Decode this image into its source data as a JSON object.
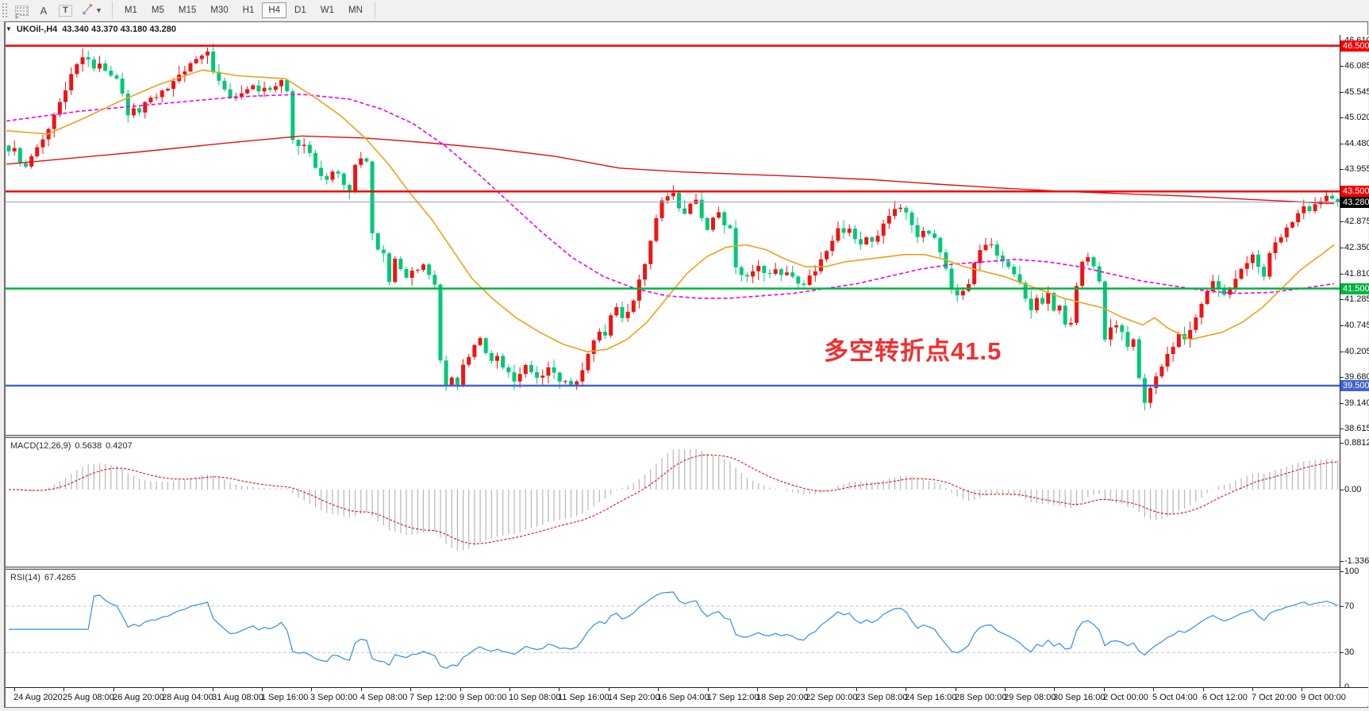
{
  "toolbar": {
    "tools": [
      {
        "name": "indicator-window-icon",
        "glyph": "F"
      },
      {
        "name": "text-label-icon",
        "glyph": "A"
      },
      {
        "name": "text-box-icon",
        "glyph": "T"
      },
      {
        "name": "cursor-styles-icon",
        "glyph": "arrows"
      }
    ],
    "timeframes": [
      "M1",
      "M5",
      "M15",
      "M30",
      "H1",
      "H4",
      "D1",
      "W1",
      "MN"
    ],
    "active_timeframe": "H4"
  },
  "chart": {
    "title_symbol": "UKOil-,H4",
    "title_ohlc": "43.340 43.370 43.180 43.280",
    "expand_triangle": "▼"
  },
  "annotation": {
    "text": "多空转折点41.5",
    "color": "#f22e2e"
  },
  "indicators": {
    "macd": {
      "name": "MACD(12,26,9)",
      "value_main": "0.5638",
      "value_signal": "0.4207",
      "axis_ticks": [
        0.8812,
        0.0,
        -1.3368
      ],
      "axis_tick_labels": [
        "0.8812",
        "0.00",
        "-1.3368"
      ]
    },
    "rsi": {
      "name": "RSI(14)",
      "value": "67.4265",
      "axis_ticks": [
        100,
        70,
        30,
        0
      ],
      "axis_tick_labels": [
        "100",
        "70",
        "30",
        "0"
      ],
      "dashed_levels": [
        70,
        30
      ]
    }
  },
  "price_axis": {
    "ticks": [
      46.61,
      46.085,
      45.545,
      45.02,
      44.48,
      43.955,
      43.43,
      42.875,
      42.35,
      41.81,
      41.285,
      40.745,
      40.205,
      39.68,
      39.14,
      38.615
    ],
    "tick_labels": [
      "46.610",
      "46.085",
      "45.545",
      "45.020",
      "44.480",
      "43.955",
      "43.430",
      "42.875",
      "42.350",
      "41.810",
      "41.285",
      "40.745",
      "40.205",
      "39.680",
      "39.140",
      "38.615"
    ],
    "tags": [
      {
        "text": "46.500",
        "price": 46.5,
        "bg": "#f40000",
        "fg": "#ffffff"
      },
      {
        "text": "43.500",
        "price": 43.5,
        "bg": "#f40000",
        "fg": "#ffffff"
      },
      {
        "text": "43.280",
        "price": 43.28,
        "bg": "#000000",
        "fg": "#ffffff"
      },
      {
        "text": "41.500",
        "price": 41.5,
        "bg": "#00b43e",
        "fg": "#ffffff"
      },
      {
        "text": "39.500",
        "price": 39.5,
        "bg": "#4163d6",
        "fg": "#ffffff"
      }
    ]
  },
  "time_axis": {
    "labels": [
      "24 Aug 2020",
      "25 Aug 08:00",
      "26 Aug 20:00",
      "28 Aug 04:00",
      "31 Aug 08:00",
      "1 Sep 16:00",
      "3 Sep 00:00",
      "4 Sep 08:00",
      "7 Sep 12:00",
      "9 Sep 00:00",
      "10 Sep 08:00",
      "11 Sep 16:00",
      "14 Sep 20:00",
      "16 Sep 04:00",
      "17 Sep 12:00",
      "18 Sep 20:00",
      "22 Sep 00:00",
      "23 Sep 08:00",
      "24 Sep 16:00",
      "28 Sep 00:00",
      "29 Sep 08:00",
      "30 Sep 16:00",
      "2 Oct 00:00",
      "5 Oct 04:00",
      "6 Oct 12:00",
      "7 Oct 20:00",
      "9 Oct 00:00"
    ]
  },
  "chart_data": {
    "type": "candlestick",
    "symbol": "UKOil-",
    "timeframe": "H4",
    "count": 235,
    "colors": {
      "up": "#ee1414",
      "down": "#00c878",
      "macd_hist": "#b6b6b6",
      "macd_signal": "#e01010",
      "rsi_line": "#2f8fe8",
      "level_dash": "#c4c4c4",
      "current_price_line": "#9aa0a4"
    },
    "y_axis": {
      "min": 38.4,
      "max": 46.7
    },
    "closes": [
      44.3,
      44.35,
      44.1,
      44.0,
      44.25,
      44.45,
      44.55,
      44.8,
      45.05,
      45.3,
      45.6,
      45.9,
      46.15,
      46.3,
      46.2,
      46.05,
      46.1,
      45.95,
      45.9,
      45.8,
      45.55,
      45.1,
      45.2,
      45.15,
      45.3,
      45.4,
      45.45,
      45.55,
      45.65,
      45.8,
      45.9,
      46.0,
      46.1,
      46.2,
      46.3,
      46.35,
      46.0,
      45.8,
      45.6,
      45.45,
      45.4,
      45.5,
      45.6,
      45.65,
      45.6,
      45.65,
      45.6,
      45.7,
      45.75,
      45.55,
      44.55,
      44.4,
      44.5,
      44.3,
      44.0,
      43.85,
      43.7,
      43.9,
      43.85,
      43.6,
      43.55,
      44.05,
      44.2,
      44.15,
      42.6,
      42.3,
      42.2,
      41.6,
      42.15,
      41.9,
      41.75,
      41.9,
      41.85,
      42.0,
      41.75,
      41.55,
      40.05,
      39.5,
      39.7,
      39.55,
      39.9,
      40.1,
      40.3,
      40.45,
      40.2,
      40.0,
      40.15,
      39.9,
      39.75,
      39.6,
      39.7,
      39.9,
      39.8,
      39.65,
      39.75,
      39.9,
      39.75,
      39.6,
      39.55,
      39.5,
      39.6,
      39.8,
      40.2,
      40.45,
      40.6,
      40.55,
      40.9,
      41.1,
      40.9,
      41.0,
      41.3,
      41.7,
      42.0,
      42.5,
      42.9,
      43.3,
      43.4,
      43.45,
      43.2,
      43.05,
      43.25,
      43.35,
      42.9,
      42.7,
      42.95,
      43.05,
      42.85,
      42.75,
      41.95,
      41.8,
      41.7,
      41.85,
      41.95,
      41.8,
      41.85,
      41.9,
      41.8,
      41.85,
      41.7,
      41.6,
      41.55,
      41.75,
      41.9,
      42.1,
      42.3,
      42.5,
      42.7,
      42.65,
      42.7,
      42.5,
      42.45,
      42.55,
      42.5,
      42.6,
      42.8,
      43.0,
      43.1,
      43.15,
      43.1,
      42.8,
      42.6,
      42.7,
      42.6,
      42.55,
      42.2,
      41.9,
      41.5,
      41.35,
      41.5,
      41.6,
      42.0,
      42.3,
      42.35,
      42.4,
      42.2,
      42.05,
      42.0,
      41.8,
      41.6,
      41.3,
      41.0,
      41.3,
      41.2,
      41.4,
      41.1,
      41.15,
      40.75,
      40.8,
      41.5,
      42.05,
      42.15,
      41.95,
      41.7,
      40.45,
      40.7,
      40.75,
      40.55,
      40.3,
      40.45,
      39.65,
      39.2,
      39.45,
      39.7,
      39.9,
      40.1,
      40.3,
      40.55,
      40.45,
      40.7,
      40.9,
      41.2,
      41.45,
      41.6,
      41.5,
      41.35,
      41.5,
      41.75,
      41.9,
      42.05,
      42.2,
      41.9,
      41.75,
      42.2,
      42.45,
      42.6,
      42.75,
      42.9,
      43.05,
      43.15,
      43.1,
      43.2,
      43.3,
      43.45,
      43.35,
      43.28
    ],
    "last_candle": {
      "o": 43.34,
      "h": 43.37,
      "l": 43.18,
      "c": 43.28
    },
    "levels": [
      {
        "price": 46.5,
        "color": "#f40000",
        "width": 2.5,
        "name": "resistance-46.5"
      },
      {
        "price": 43.5,
        "color": "#f40000",
        "width": 2.5,
        "name": "resistance-43.5"
      },
      {
        "price": 41.5,
        "color": "#00b43e",
        "width": 2.5,
        "name": "pivot-41.5"
      },
      {
        "price": 39.5,
        "color": "#4163d6",
        "width": 2.5,
        "name": "support-39.5"
      },
      {
        "price": 43.28,
        "color": "#9aa0a4",
        "width": 1,
        "name": "current-price"
      }
    ],
    "ma_lines": [
      {
        "name": "ma-slow-red",
        "color": "#e01010",
        "width": 1.4,
        "dash": "",
        "points": [
          [
            8,
            44.06
          ],
          [
            180,
            44.32
          ],
          [
            300,
            44.52
          ],
          [
            380,
            44.64
          ],
          [
            460,
            44.6
          ],
          [
            540,
            44.5
          ],
          [
            620,
            44.38
          ],
          [
            700,
            44.22
          ],
          [
            780,
            43.98
          ],
          [
            860,
            43.9
          ],
          [
            940,
            43.85
          ],
          [
            1020,
            43.8
          ],
          [
            1100,
            43.74
          ],
          [
            1180,
            43.65
          ],
          [
            1260,
            43.57
          ],
          [
            1340,
            43.5
          ],
          [
            1420,
            43.45
          ],
          [
            1500,
            43.4
          ],
          [
            1580,
            43.33
          ],
          [
            1681,
            43.25
          ]
        ]
      },
      {
        "name": "ma-medium-magenta",
        "color": "#ee00ee",
        "width": 1.6,
        "dash": "5,3",
        "points": [
          [
            8,
            44.95
          ],
          [
            100,
            45.15
          ],
          [
            200,
            45.3
          ],
          [
            300,
            45.45
          ],
          [
            380,
            45.5
          ],
          [
            440,
            45.4
          ],
          [
            480,
            45.2
          ],
          [
            520,
            44.9
          ],
          [
            560,
            44.45
          ],
          [
            600,
            43.9
          ],
          [
            640,
            43.3
          ],
          [
            680,
            42.7
          ],
          [
            720,
            42.15
          ],
          [
            760,
            41.75
          ],
          [
            800,
            41.5
          ],
          [
            840,
            41.35
          ],
          [
            880,
            41.3
          ],
          [
            920,
            41.3
          ],
          [
            960,
            41.35
          ],
          [
            1000,
            41.4
          ],
          [
            1040,
            41.5
          ],
          [
            1080,
            41.6
          ],
          [
            1120,
            41.75
          ],
          [
            1160,
            41.9
          ],
          [
            1200,
            42.0
          ],
          [
            1240,
            42.05
          ],
          [
            1280,
            42.1
          ],
          [
            1320,
            42.05
          ],
          [
            1360,
            41.95
          ],
          [
            1400,
            41.8
          ],
          [
            1440,
            41.65
          ],
          [
            1480,
            41.55
          ],
          [
            1520,
            41.45
          ],
          [
            1560,
            41.4
          ],
          [
            1600,
            41.42
          ],
          [
            1640,
            41.5
          ],
          [
            1681,
            41.6
          ]
        ]
      },
      {
        "name": "ma-fast-orange",
        "color": "#f0a018",
        "width": 1.6,
        "dash": "",
        "points": [
          [
            8,
            44.75
          ],
          [
            60,
            44.68
          ],
          [
            105,
            45.0
          ],
          [
            150,
            45.35
          ],
          [
            200,
            45.7
          ],
          [
            255,
            46.0
          ],
          [
            300,
            45.88
          ],
          [
            360,
            45.82
          ],
          [
            400,
            45.4
          ],
          [
            430,
            45.05
          ],
          [
            460,
            44.6
          ],
          [
            490,
            44.05
          ],
          [
            515,
            43.5
          ],
          [
            545,
            42.9
          ],
          [
            570,
            42.3
          ],
          [
            595,
            41.7
          ],
          [
            620,
            41.3
          ],
          [
            650,
            40.9
          ],
          [
            680,
            40.6
          ],
          [
            710,
            40.35
          ],
          [
            740,
            40.2
          ],
          [
            765,
            40.25
          ],
          [
            790,
            40.45
          ],
          [
            815,
            40.8
          ],
          [
            840,
            41.3
          ],
          [
            865,
            41.8
          ],
          [
            890,
            42.15
          ],
          [
            915,
            42.35
          ],
          [
            940,
            42.4
          ],
          [
            965,
            42.3
          ],
          [
            990,
            42.1
          ],
          [
            1015,
            41.95
          ],
          [
            1040,
            41.95
          ],
          [
            1065,
            42.05
          ],
          [
            1090,
            42.1
          ],
          [
            1115,
            42.15
          ],
          [
            1140,
            42.2
          ],
          [
            1165,
            42.2
          ],
          [
            1190,
            42.1
          ],
          [
            1215,
            41.95
          ],
          [
            1240,
            41.85
          ],
          [
            1265,
            41.75
          ],
          [
            1290,
            41.6
          ],
          [
            1315,
            41.45
          ],
          [
            1340,
            41.3
          ],
          [
            1365,
            41.2
          ],
          [
            1390,
            41.1
          ],
          [
            1415,
            40.9
          ],
          [
            1440,
            40.75
          ],
          [
            1455,
            40.9
          ],
          [
            1470,
            40.7
          ],
          [
            1500,
            40.45
          ],
          [
            1540,
            40.6
          ],
          [
            1565,
            40.8
          ],
          [
            1590,
            41.1
          ],
          [
            1615,
            41.5
          ],
          [
            1640,
            41.9
          ],
          [
            1665,
            42.2
          ],
          [
            1681,
            42.4
          ]
        ]
      }
    ],
    "macd_params": {
      "fast": 12,
      "slow": 26,
      "signal": 9
    },
    "rsi_period": 14
  }
}
